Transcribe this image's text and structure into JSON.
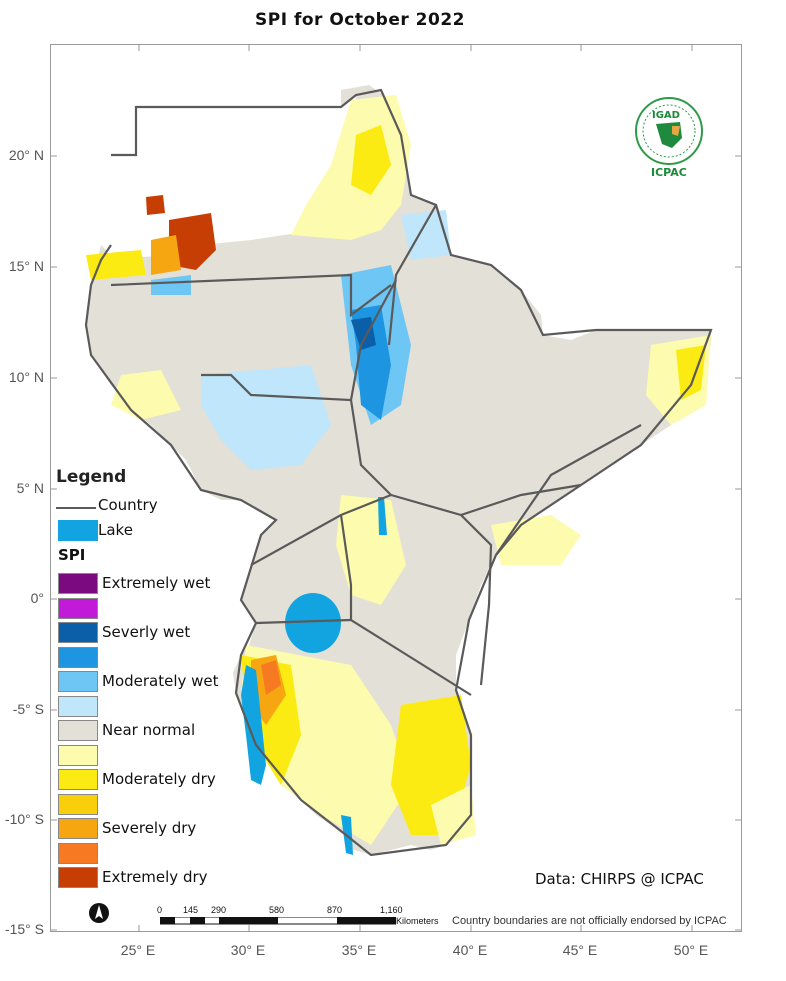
{
  "title": "SPI   for    October 2022",
  "lat_labels": [
    "20° N",
    "15° N",
    "10° N",
    "5° N",
    "0°",
    "-5° S",
    "-10° S",
    "-15° S"
  ],
  "lon_labels": [
    "25° E",
    "30° E",
    "35° E",
    "40° E",
    "45° E",
    "50° E"
  ],
  "legend": {
    "title": "Legend",
    "country_label": "Country",
    "lake_label": "Lake",
    "spi_title": "SPI",
    "classes": [
      {
        "label": "Extremely wet",
        "color": "#7b0a80"
      },
      {
        "label": "",
        "color": "#c21bd8"
      },
      {
        "label": "Severly wet",
        "color": "#0a5fa8"
      },
      {
        "label": "",
        "color": "#1e95e0"
      },
      {
        "label": "Moderately wet",
        "color": "#6ec6f5"
      },
      {
        "label": "",
        "color": "#bfe6fa"
      },
      {
        "label": "Near normal",
        "color": "#e3e0d7"
      },
      {
        "label": "",
        "color": "#fdfbad"
      },
      {
        "label": "Moderately dry",
        "color": "#fbeb12"
      },
      {
        "label": "",
        "color": "#f9cf0c"
      },
      {
        "label": "Severely dry",
        "color": "#f6a610"
      },
      {
        "label": "",
        "color": "#f77a22"
      },
      {
        "label": "Extremely dry",
        "color": "#c63e04"
      }
    ],
    "lake_color": "#12a4e0",
    "country_line_color": "#5a5a5a"
  },
  "credit": "Data: CHIRPS @ ICPAC",
  "disclaimer": "Country boundaries are not officially endorsed by ICPAC",
  "scale_bar": {
    "ticks": [
      "0",
      "145",
      "290",
      "580",
      "870",
      "1,160"
    ],
    "unit": "Kilometers"
  },
  "logo": {
    "badge_text": "IGAD",
    "org_name": "ICPAC"
  }
}
